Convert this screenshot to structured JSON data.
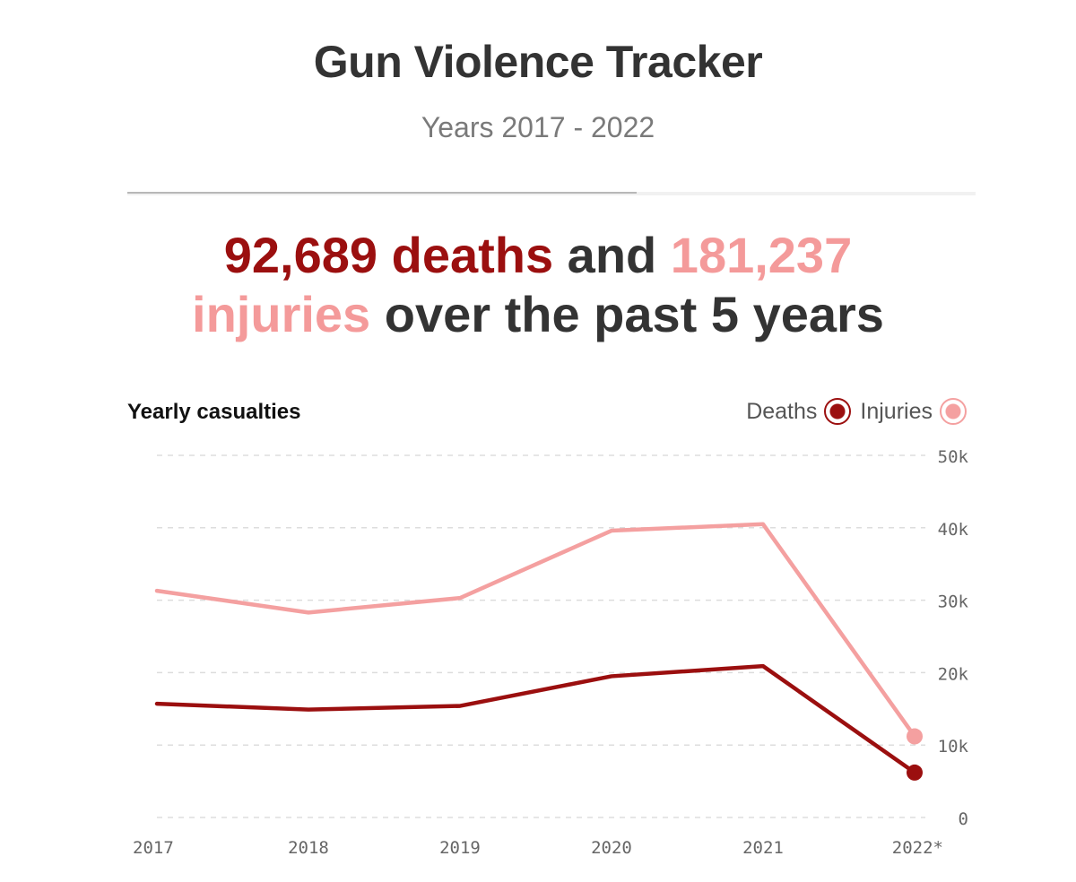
{
  "header": {
    "title": "Gun Violence Tracker",
    "subtitle": "Years 2017 - 2022"
  },
  "headline": {
    "deaths_total": "92,689 deaths",
    "connector": " and ",
    "injuries_total_number": "181,237",
    "injuries_word": "injuries",
    "tail": " over the past 5 years"
  },
  "legend": {
    "deaths": "Deaths",
    "injuries": "Injuries"
  },
  "colors": {
    "deaths": "#9b0f0f",
    "injuries": "#f4a0a0",
    "text_dark": "#333333",
    "grid": "#dddddd"
  },
  "chart_data": {
    "type": "line",
    "title": "Yearly casualties",
    "categories": [
      "2017",
      "2018",
      "2019",
      "2020",
      "2021",
      "2022*"
    ],
    "series": [
      {
        "name": "Deaths",
        "values": [
          15700,
          14900,
          15400,
          19500,
          20900,
          6200
        ]
      },
      {
        "name": "Injuries",
        "values": [
          31300,
          28300,
          30300,
          39600,
          40500,
          11200
        ]
      }
    ],
    "ylim": [
      0,
      50000
    ],
    "yticks": [
      {
        "value": 0,
        "label": "0"
      },
      {
        "value": 10000,
        "label": "10k"
      },
      {
        "value": 20000,
        "label": "20k"
      },
      {
        "value": 30000,
        "label": "30k"
      },
      {
        "value": 40000,
        "label": "40k"
      },
      {
        "value": 50000,
        "label": "50k"
      }
    ],
    "grid": true,
    "legend_position": "top-right",
    "endpoint_markers": true
  }
}
